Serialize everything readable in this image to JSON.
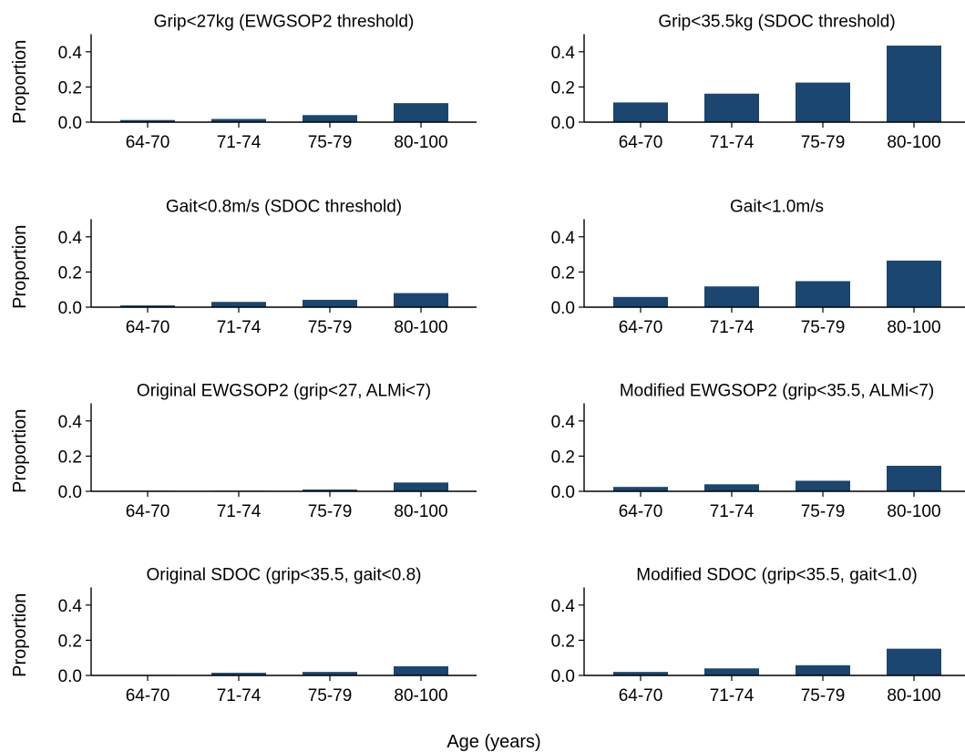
{
  "colors": {
    "bar": "#1b466f",
    "axis": "#000000",
    "text": "#000000"
  },
  "figure": {
    "xlabel": "Age (years)"
  },
  "chart_data": [
    {
      "type": "bar",
      "title": "Grip<27kg (EWGSOP2 threshold)",
      "ylabel": "Proportion",
      "xlabel": "",
      "categories": [
        "64-70",
        "71-74",
        "75-79",
        "80-100"
      ],
      "values": [
        0.012,
        0.018,
        0.04,
        0.108
      ],
      "ylim": [
        0,
        0.5
      ],
      "yticks": [
        0.0,
        0.2,
        0.4
      ],
      "ytick_labels": [
        "0.0",
        "0.2",
        "0.4"
      ],
      "grid": false
    },
    {
      "type": "bar",
      "title": "Grip<35.5kg (SDOC threshold)",
      "ylabel": "",
      "xlabel": "",
      "categories": [
        "64-70",
        "71-74",
        "75-79",
        "80-100"
      ],
      "values": [
        0.112,
        0.162,
        0.225,
        0.435
      ],
      "ylim": [
        0,
        0.5
      ],
      "yticks": [
        0.0,
        0.2,
        0.4
      ],
      "ytick_labels": [
        "0.0",
        "0.2",
        "0.4"
      ],
      "grid": false
    },
    {
      "type": "bar",
      "title": "Gait<0.8m/s (SDOC threshold)",
      "ylabel": "Proportion",
      "xlabel": "",
      "categories": [
        "64-70",
        "71-74",
        "75-79",
        "80-100"
      ],
      "values": [
        0.01,
        0.03,
        0.042,
        0.08
      ],
      "ylim": [
        0,
        0.5
      ],
      "yticks": [
        0.0,
        0.2,
        0.4
      ],
      "ytick_labels": [
        "0.0",
        "0.2",
        "0.4"
      ],
      "grid": false
    },
    {
      "type": "bar",
      "title": "Gait<1.0m/s",
      "ylabel": "",
      "xlabel": "",
      "categories": [
        "64-70",
        "71-74",
        "75-79",
        "80-100"
      ],
      "values": [
        0.058,
        0.118,
        0.148,
        0.265
      ],
      "ylim": [
        0,
        0.5
      ],
      "yticks": [
        0.0,
        0.2,
        0.4
      ],
      "ytick_labels": [
        "0.0",
        "0.2",
        "0.4"
      ],
      "grid": false
    },
    {
      "type": "bar",
      "title": "Original EWGSOP2 (grip<27, ALMi<7)",
      "ylabel": "Proportion",
      "xlabel": "",
      "categories": [
        "64-70",
        "71-74",
        "75-79",
        "80-100"
      ],
      "values": [
        0.002,
        0.003,
        0.01,
        0.05
      ],
      "ylim": [
        0,
        0.5
      ],
      "yticks": [
        0.0,
        0.2,
        0.4
      ],
      "ytick_labels": [
        "0.0",
        "0.2",
        "0.4"
      ],
      "grid": false
    },
    {
      "type": "bar",
      "title": "Modified EWGSOP2 (grip<35.5, ALMi<7)",
      "ylabel": "",
      "xlabel": "",
      "categories": [
        "64-70",
        "71-74",
        "75-79",
        "80-100"
      ],
      "values": [
        0.025,
        0.04,
        0.06,
        0.145
      ],
      "ylim": [
        0,
        0.5
      ],
      "yticks": [
        0.0,
        0.2,
        0.4
      ],
      "ytick_labels": [
        "0.0",
        "0.2",
        "0.4"
      ],
      "grid": false
    },
    {
      "type": "bar",
      "title": "Original SDOC (grip<35.5, gait<0.8)",
      "ylabel": "Proportion",
      "xlabel": "",
      "categories": [
        "64-70",
        "71-74",
        "75-79",
        "80-100"
      ],
      "values": [
        0.003,
        0.015,
        0.02,
        0.052
      ],
      "ylim": [
        0,
        0.5
      ],
      "yticks": [
        0.0,
        0.2,
        0.4
      ],
      "ytick_labels": [
        "0.0",
        "0.2",
        "0.4"
      ],
      "grid": false
    },
    {
      "type": "bar",
      "title": "Modified SDOC (grip<35.5, gait<1.0)",
      "ylabel": "",
      "xlabel": "",
      "categories": [
        "64-70",
        "71-74",
        "75-79",
        "80-100"
      ],
      "values": [
        0.02,
        0.04,
        0.058,
        0.152
      ],
      "ylim": [
        0,
        0.5
      ],
      "yticks": [
        0.0,
        0.2,
        0.4
      ],
      "ytick_labels": [
        "0.0",
        "0.2",
        "0.4"
      ],
      "grid": false
    }
  ]
}
